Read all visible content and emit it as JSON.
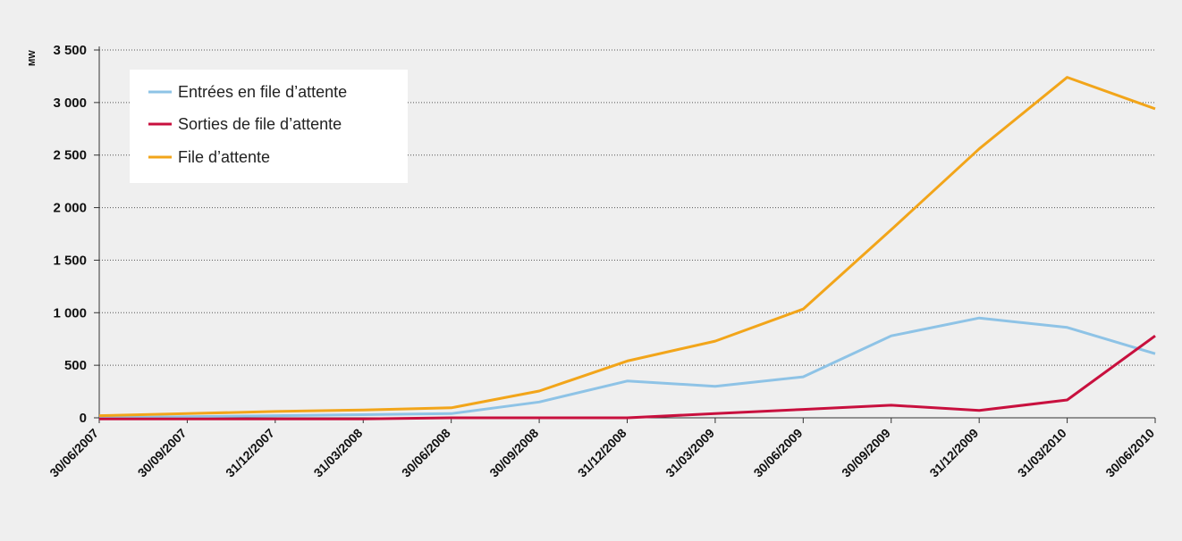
{
  "chart_data": {
    "type": "line",
    "title": "",
    "xlabel": "",
    "ylabel": "MW",
    "ylim": [
      0,
      3500
    ],
    "yticks": [
      0,
      500,
      1000,
      1500,
      2000,
      2500,
      3000,
      3500
    ],
    "ytick_labels": [
      "0",
      "500",
      "1 000",
      "1 500",
      "2 000",
      "2 500",
      "3 000",
      "3 500"
    ],
    "grid": true,
    "legend_position": "top-left",
    "categories": [
      "30/06/2007",
      "30/09/2007",
      "31/12/2007",
      "31/03/2008",
      "30/06/2008",
      "30/09/2008",
      "31/12/2008",
      "31/03/2009",
      "30/06/2009",
      "30/09/2009",
      "31/12/2009",
      "31/03/2010",
      "30/06/2010"
    ],
    "series": [
      {
        "name": "Entrées en file d’attente",
        "color": "#8ec3e6",
        "values": [
          0,
          10,
          20,
          30,
          40,
          150,
          350,
          300,
          390,
          780,
          950,
          860,
          610
        ]
      },
      {
        "name": "Sorties de file d’attente",
        "color": "#c8103e",
        "values": [
          -10,
          -10,
          -10,
          -10,
          0,
          0,
          0,
          40,
          80,
          120,
          70,
          170,
          780
        ]
      },
      {
        "name": "File d’attente",
        "color": "#f2a51a",
        "values": [
          20,
          40,
          60,
          75,
          95,
          255,
          540,
          730,
          1035,
          1790,
          2560,
          3240,
          2940
        ]
      }
    ]
  }
}
